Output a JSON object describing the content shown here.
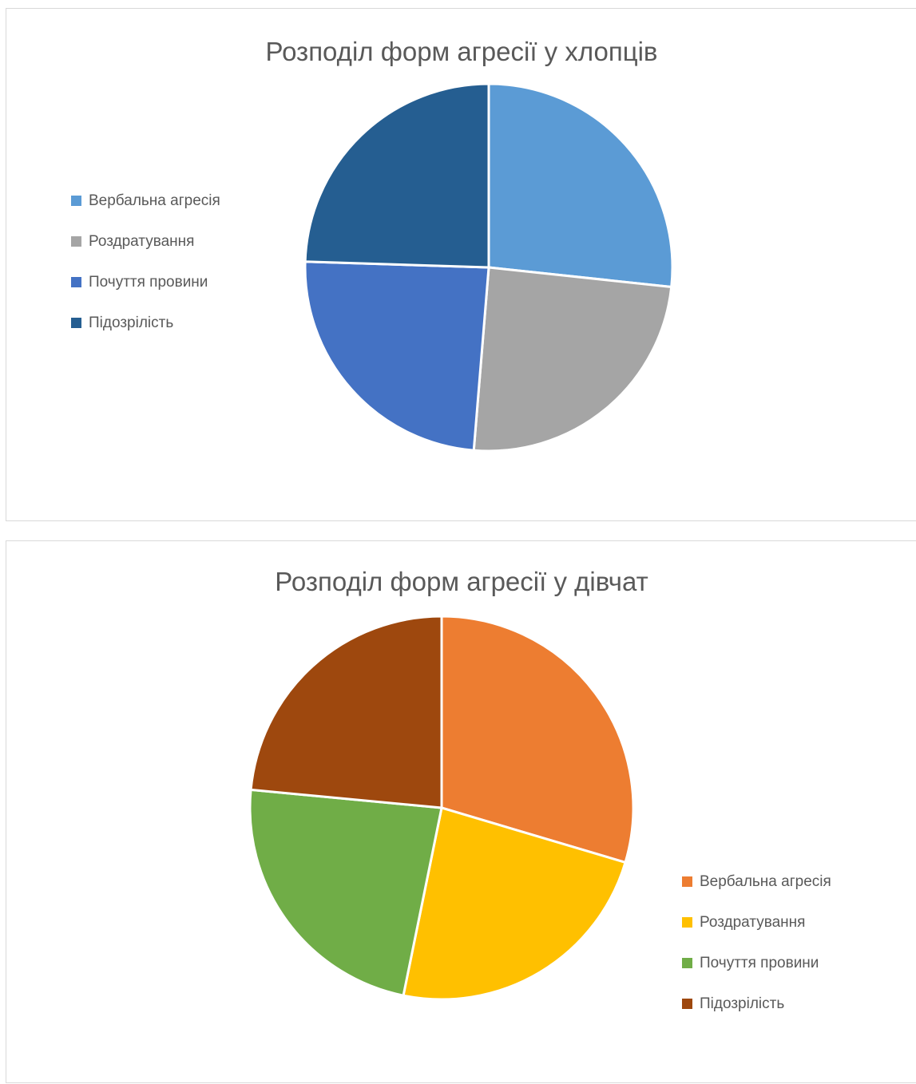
{
  "chart_data": [
    {
      "type": "pie",
      "title": "Розподіл форм агресії у хлопців",
      "categories": [
        "Вербальна агресія",
        "Роздратування",
        "Почуття провини",
        "Підозрілість"
      ],
      "values": [
        26.7,
        24.6,
        24.2,
        24.5
      ],
      "colors": [
        "#5B9BD5",
        "#A5A5A5",
        "#4472C4",
        "#255E91"
      ],
      "legend": "left"
    },
    {
      "type": "pie",
      "title": "Розподіл форм агресії у дівчат",
      "categories": [
        "Вербальна агресія",
        "Роздратування",
        "Почуття провини",
        "Підозрілість"
      ],
      "values": [
        29.6,
        23.6,
        23.3,
        23.5
      ],
      "colors": [
        "#ED7D31",
        "#FFC000",
        "#70AD47",
        "#9E480E"
      ],
      "legend": "bottom-right"
    }
  ]
}
